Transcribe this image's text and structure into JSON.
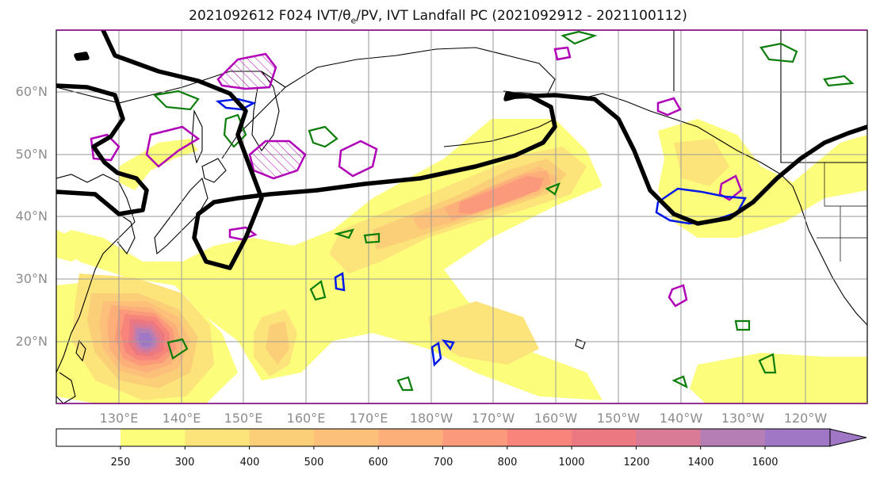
{
  "title": {
    "prefix": "2021092612 F024 IVT/",
    "theta_symbol": "θ",
    "theta_sub": "e",
    "suffix": "/PV, IVT Landfall PC (2021092912 - 2021100112)"
  },
  "map": {
    "projection": "equirectangular",
    "lon_range_east": [
      120,
      250
    ],
    "lat_range": [
      10,
      70
    ],
    "lat_labels": [
      "20°N",
      "30°N",
      "40°N",
      "50°N",
      "60°N"
    ],
    "lon_labels": [
      "130°E",
      "140°E",
      "150°E",
      "160°E",
      "170°E",
      "180°W",
      "170°W",
      "160°W",
      "150°W",
      "140°W",
      "130°W",
      "120°W"
    ],
    "gridline_color": "#9a9a9a",
    "coastline_color": "#000000"
  },
  "colorbar": {
    "ticks": [
      "250",
      "300",
      "400",
      "500",
      "600",
      "700",
      "800",
      "1000",
      "1200",
      "1400",
      "1600"
    ],
    "colors": [
      "#fdfd7c",
      "#fce47a",
      "#fbcf78",
      "#fcc07a",
      "#fdaf7a",
      "#fb9a7b",
      "#f7857b",
      "#ec7982",
      "#d97b96",
      "#b57fb6",
      "#a077c4"
    ],
    "extend": "max"
  },
  "ivt_fills": [
    {
      "level": "250",
      "color": "#fdfd7c"
    },
    {
      "level": "300",
      "color": "#fce47a"
    },
    {
      "level": "400",
      "color": "#fbcf78"
    },
    {
      "level": "500",
      "color": "#fcc07a"
    },
    {
      "level": "600",
      "color": "#fdaf7a"
    },
    {
      "level": "700",
      "color": "#fb9a7b"
    },
    {
      "level": "800",
      "color": "#f7857b"
    },
    {
      "level": "1000",
      "color": "#ec7982"
    },
    {
      "level": "1200",
      "color": "#d97b96"
    },
    {
      "level": "1400",
      "color": "#b57fb6"
    },
    {
      "level": "1600",
      "color": "#a077c4"
    }
  ],
  "contour_colors": {
    "pc_line": "#000000",
    "theta_e": "#0a7d0a",
    "pv_magenta": "#b000b8",
    "pv_blue": "#0018e8"
  }
}
